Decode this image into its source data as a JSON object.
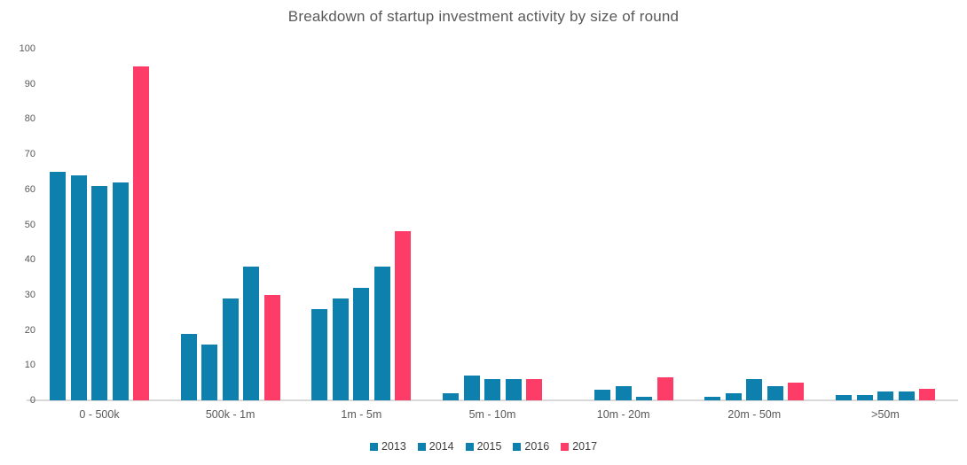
{
  "chart_data": {
    "type": "bar",
    "title": "Breakdown of startup investment activity by size of round",
    "categories": [
      "0 - 500k",
      "500k - 1m",
      "1m - 5m",
      "5m - 10m",
      "10m - 20m",
      "20m - 50m",
      ">50m"
    ],
    "series": [
      {
        "name": "2013",
        "color": "#0e80ad",
        "values": [
          65,
          19,
          26,
          2,
          0,
          1,
          1.5
        ]
      },
      {
        "name": "2014",
        "color": "#0e80ad",
        "values": [
          64,
          16,
          29,
          7,
          3,
          2,
          1.5
        ]
      },
      {
        "name": "2015",
        "color": "#0e80ad",
        "values": [
          61,
          29,
          32,
          6,
          4,
          6,
          2.5
        ]
      },
      {
        "name": "2016",
        "color": "#0e80ad",
        "values": [
          62,
          38,
          38,
          6,
          1,
          4,
          2.5
        ]
      },
      {
        "name": "2017",
        "color": "#fd3c68",
        "values": [
          95,
          30,
          48,
          6,
          6.5,
          5,
          3.3
        ]
      }
    ],
    "xlabel": "",
    "ylabel": "",
    "ylim": [
      0,
      100
    ],
    "y_ticks": [
      0,
      10,
      20,
      30,
      40,
      50,
      60,
      70,
      80,
      90,
      100
    ],
    "grid": false,
    "legend_position": "bottom",
    "legend": [
      "2013",
      "2014",
      "2015",
      "2016",
      "2017"
    ]
  },
  "colors": {
    "background": "#ffffff",
    "bar_blue": "#0e80ad",
    "bar_pink": "#fd3c68",
    "axis_line": "#d9d9d9",
    "title_text": "#595959",
    "tick_text": "#595959",
    "legend_text": "#404040"
  }
}
